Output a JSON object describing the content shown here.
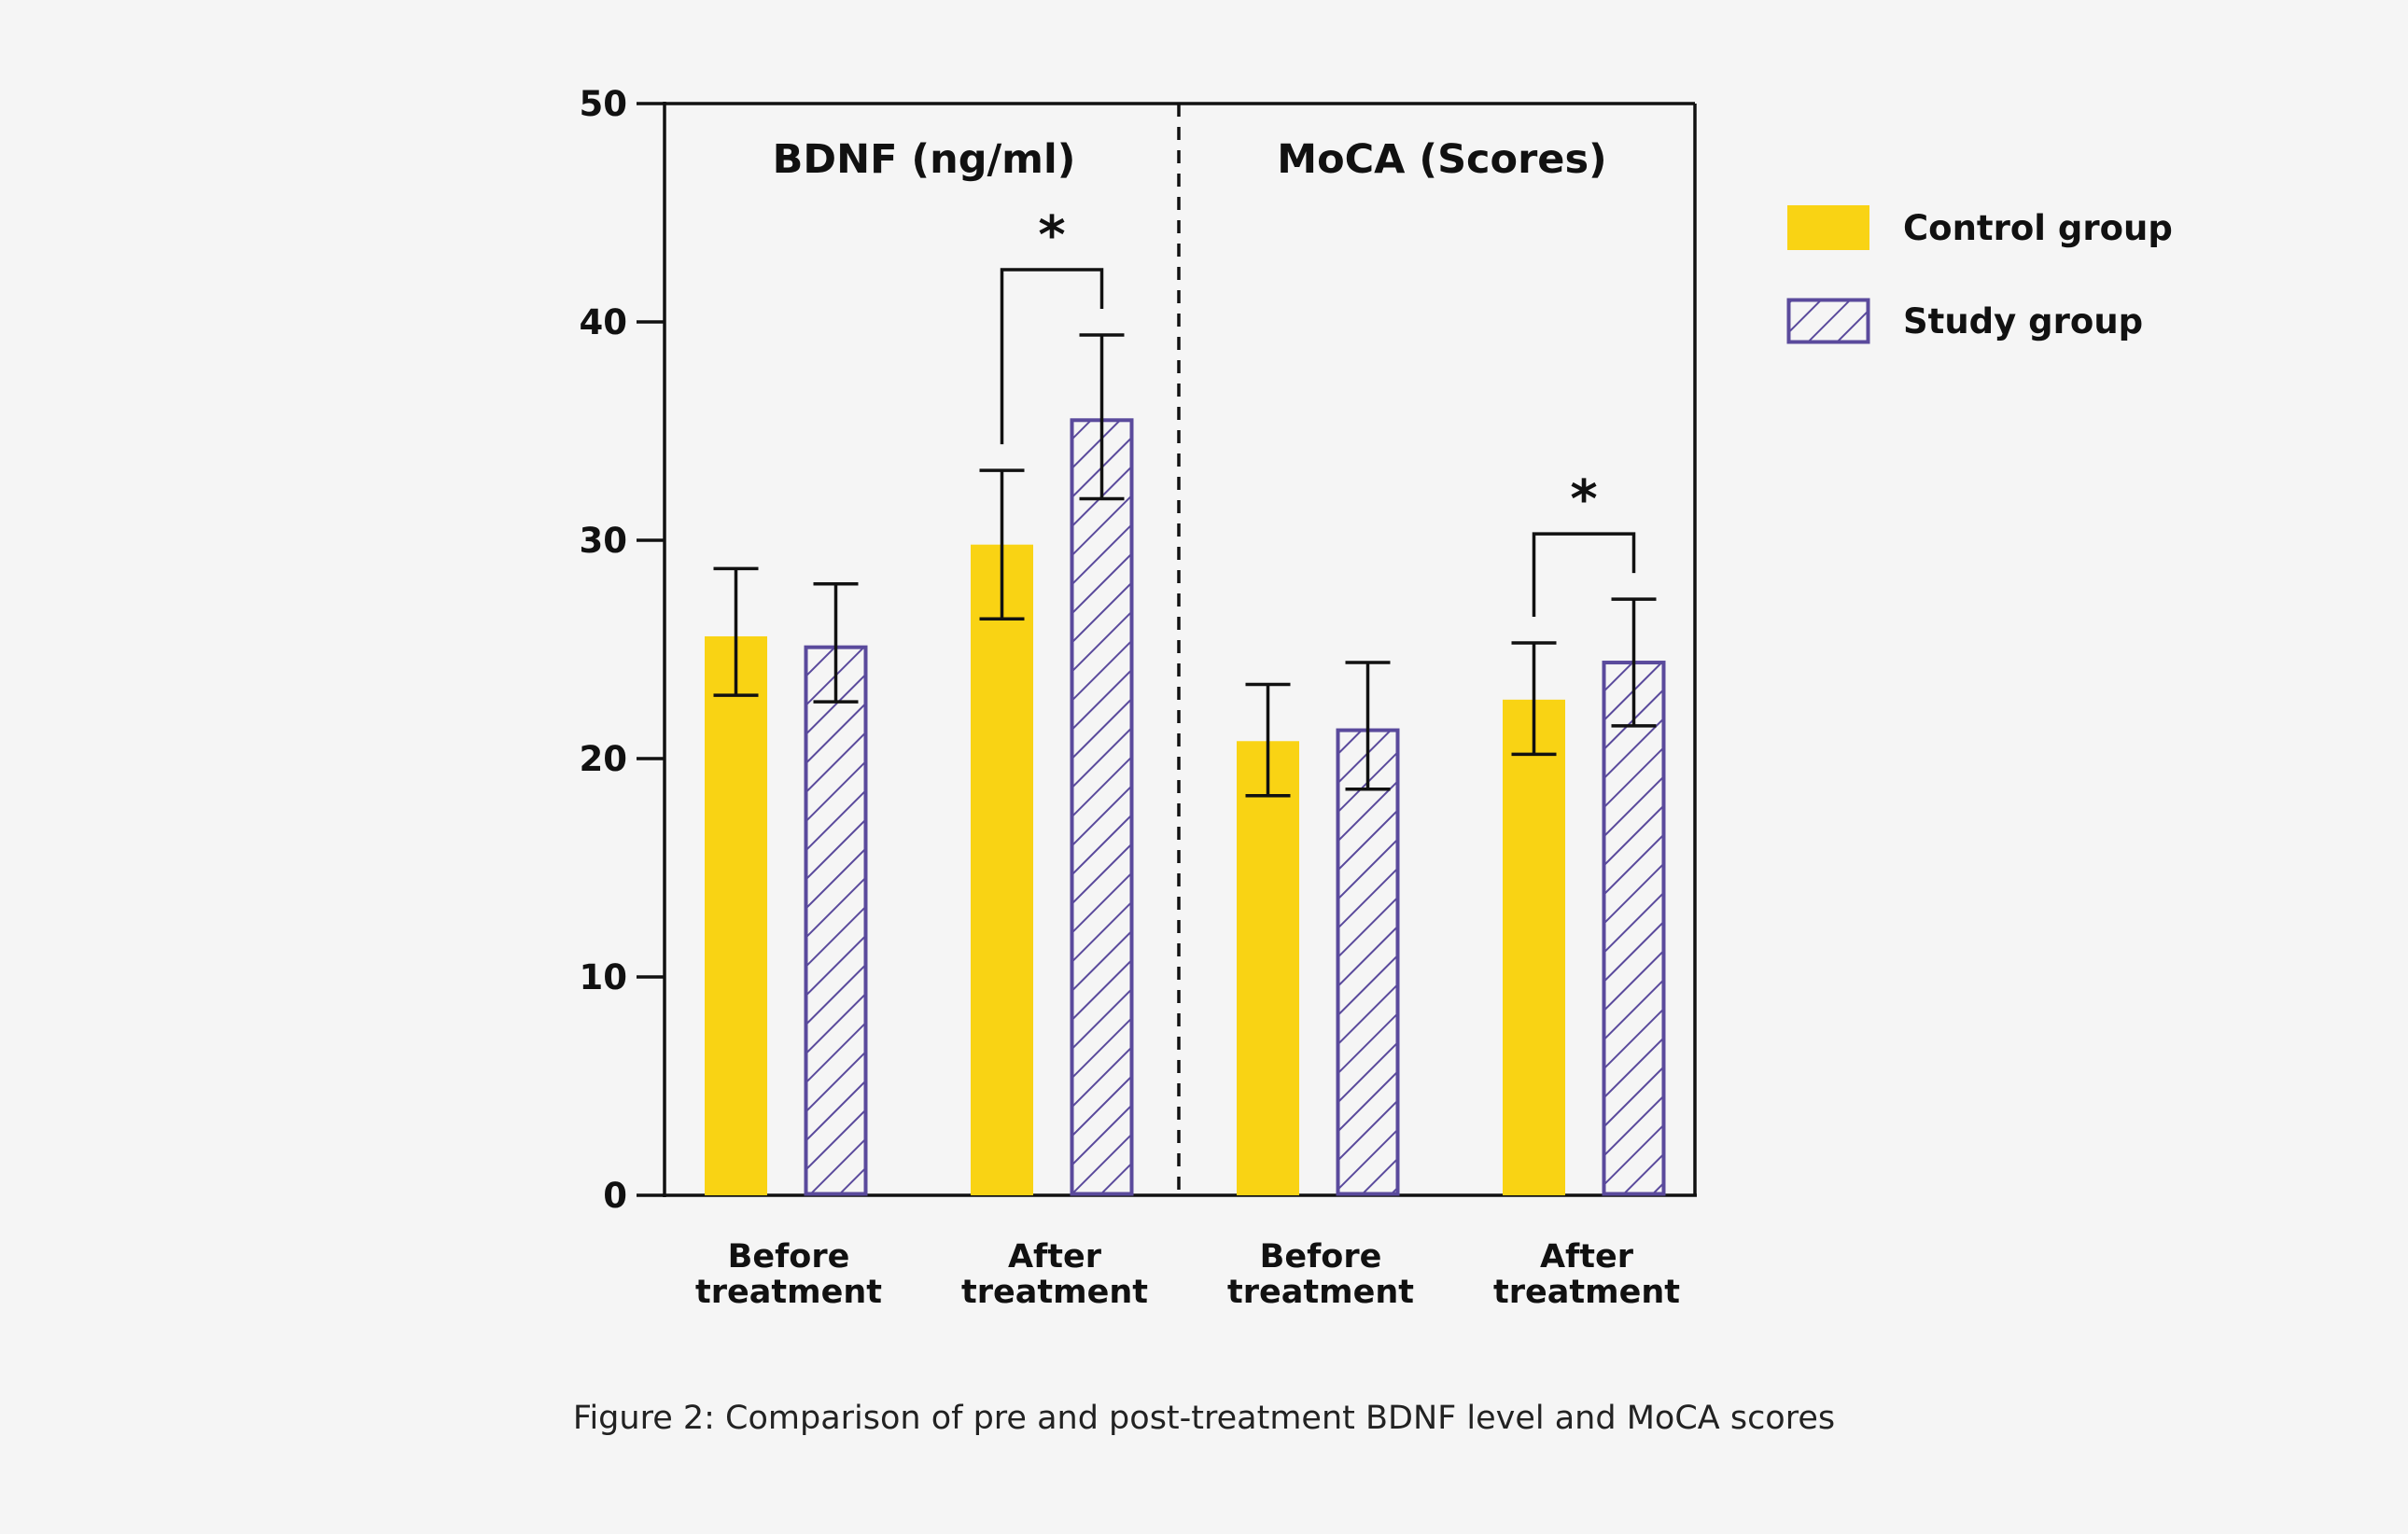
{
  "chart_data": {
    "type": "bar",
    "ylim": [
      0,
      50
    ],
    "y_ticks": [
      0,
      10,
      20,
      30,
      40,
      50
    ],
    "grid": false,
    "legend_placement": "right",
    "colors": {
      "control": "#f9d314",
      "study": "#5a4a9c",
      "axis": "#111111"
    },
    "legend": [
      {
        "name": "Control group",
        "style": "solid"
      },
      {
        "name": "Study group",
        "style": "hatched"
      }
    ],
    "panels": [
      {
        "title": "BDNF (ng/ml)",
        "categories": [
          {
            "line1": "Before",
            "line2": "treatment"
          },
          {
            "line1": "After",
            "line2": "treatment"
          }
        ],
        "series": [
          {
            "name": "Control group",
            "values": [
              25.6,
              29.8
            ],
            "error_low": [
              22.9,
              26.4
            ],
            "error_high": [
              28.7,
              33.2
            ]
          },
          {
            "name": "Study group",
            "values": [
              25.1,
              35.5
            ],
            "error_low": [
              22.6,
              31.9
            ],
            "error_high": [
              28.0,
              39.4
            ]
          }
        ],
        "significance": [
          {
            "category_index": 1,
            "label": "*"
          }
        ]
      },
      {
        "title": "MoCA (Scores)",
        "categories": [
          {
            "line1": "Before",
            "line2": "treatment"
          },
          {
            "line1": "After",
            "line2": "treatment"
          }
        ],
        "series": [
          {
            "name": "Control group",
            "values": [
              20.8,
              22.7
            ],
            "error_low": [
              18.3,
              20.2
            ],
            "error_high": [
              23.4,
              25.3
            ]
          },
          {
            "name": "Study group",
            "values": [
              21.3,
              24.4
            ],
            "error_low": [
              18.6,
              21.5
            ],
            "error_high": [
              24.4,
              27.3
            ]
          }
        ],
        "significance": [
          {
            "category_index": 1,
            "label": "*"
          }
        ]
      }
    ]
  },
  "caption": "Figure 2: Comparison of pre and post-treatment BDNF level and MoCA scores"
}
